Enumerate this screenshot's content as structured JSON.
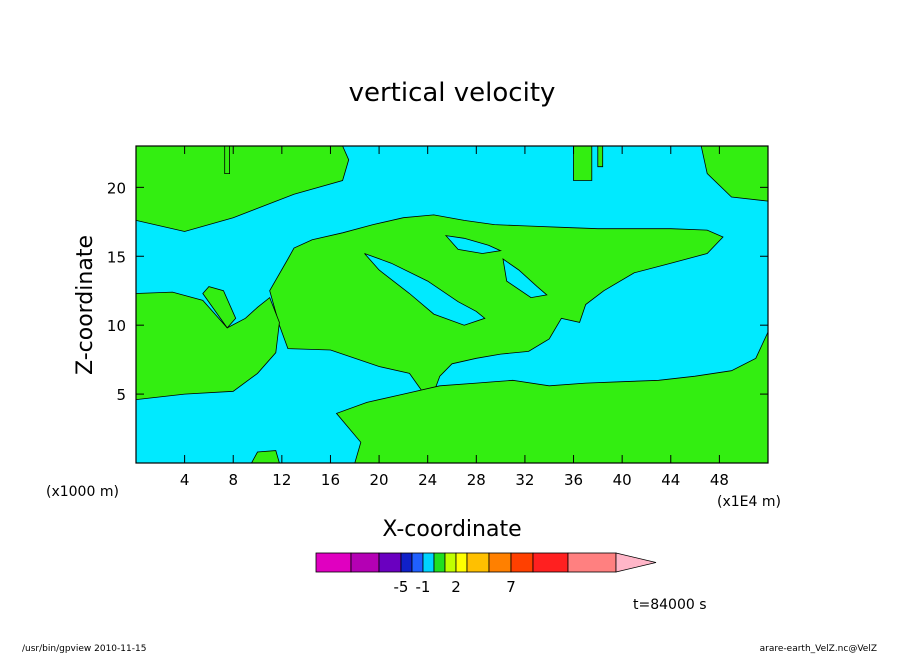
{
  "chart_data": {
    "type": "heatmap",
    "title": "vertical velocity",
    "xlabel": "X-coordinate",
    "ylabel": "Z-coordinate",
    "x_unit_left": "(x1000 m)",
    "x_unit_right": "(x1E4 m)",
    "xlim": [
      0,
      52
    ],
    "ylim": [
      0,
      23
    ],
    "x_ticks": [
      4,
      8,
      12,
      16,
      20,
      24,
      28,
      32,
      36,
      40,
      44,
      48
    ],
    "y_ticks": [
      5,
      10,
      15,
      20
    ],
    "colorbar": {
      "colors": [
        "#e000c0",
        "#b400b4",
        "#6a00c0",
        "#1020c8",
        "#2060ff",
        "#00d4ff",
        "#20e020",
        "#c0ff00",
        "#ffff00",
        "#ffc000",
        "#ff8000",
        "#ff4000",
        "#ff2020",
        "#ff8080"
      ],
      "over_color": "#ffb6c8",
      "labels": [
        {
          "text": "-5",
          "level": 3
        },
        {
          "text": "-1",
          "level": 5
        },
        {
          "text": "2",
          "level": 8
        },
        {
          "text": "7",
          "level": 11
        }
      ]
    },
    "regions": {
      "background_color": "#00eaff",
      "positive_color": "#33ee11",
      "positive_areas": [
        {
          "name": "upper-left",
          "points": [
            [
              0,
              23
            ],
            [
              17,
              23
            ],
            [
              17.5,
              22
            ],
            [
              17,
              20.5
            ],
            [
              13,
              19.5
            ],
            [
              8,
              17.8
            ],
            [
              4,
              16.8
            ],
            [
              0,
              17.6
            ]
          ]
        },
        {
          "name": "upper-right",
          "points": [
            [
              46.5,
              23
            ],
            [
              52,
              23
            ],
            [
              52,
              19
            ],
            [
              49,
              19.3
            ],
            [
              47,
              21
            ]
          ]
        },
        {
          "name": "thin-top-1",
          "points": [
            [
              7.3,
              23
            ],
            [
              7.7,
              23
            ],
            [
              7.7,
              21
            ],
            [
              7.3,
              21
            ]
          ]
        },
        {
          "name": "thin-top-2",
          "points": [
            [
              36,
              23
            ],
            [
              37.5,
              23
            ],
            [
              37.5,
              20.5
            ],
            [
              36,
              20.5
            ]
          ]
        },
        {
          "name": "thin-top-3",
          "points": [
            [
              38,
              23
            ],
            [
              38.4,
              23
            ],
            [
              38.4,
              21.5
            ],
            [
              38,
              21.5
            ]
          ]
        },
        {
          "name": "cloud",
          "points": [
            [
              12.5,
              14.8
            ],
            [
              13,
              15.6
            ],
            [
              14.5,
              16.2
            ],
            [
              17,
              16.7
            ],
            [
              19.5,
              17.3
            ],
            [
              22,
              17.8
            ],
            [
              24.5,
              18
            ],
            [
              27,
              17.6
            ],
            [
              29.5,
              17.3
            ],
            [
              32,
              17.2
            ],
            [
              35,
              17.1
            ],
            [
              38,
              17
            ],
            [
              41,
              17
            ],
            [
              44,
              17
            ],
            [
              47,
              16.9
            ],
            [
              48.3,
              16.4
            ],
            [
              47,
              15.2
            ],
            [
              44,
              14.5
            ],
            [
              41,
              13.8
            ],
            [
              38.5,
              12.5
            ],
            [
              37,
              11.5
            ],
            [
              36.5,
              10.2
            ],
            [
              35,
              10.5
            ],
            [
              34,
              9
            ],
            [
              32.3,
              8.1
            ],
            [
              30,
              7.9
            ],
            [
              28,
              7.6
            ],
            [
              26,
              7.2
            ],
            [
              25,
              6.3
            ],
            [
              24.2,
              4.4
            ],
            [
              22.5,
              6.5
            ],
            [
              20,
              7
            ],
            [
              16,
              8.2
            ],
            [
              12.5,
              8.3
            ],
            [
              11.8,
              10
            ],
            [
              11,
              12.5
            ]
          ]
        },
        {
          "name": "left-mid",
          "points": [
            [
              0,
              12.3
            ],
            [
              3,
              12.4
            ],
            [
              5.5,
              11.8
            ],
            [
              7.5,
              9.8
            ],
            [
              9,
              10.5
            ],
            [
              10,
              11.3
            ],
            [
              11,
              12
            ],
            [
              11.8,
              10.2
            ],
            [
              11.5,
              8
            ],
            [
              10,
              6.5
            ],
            [
              8,
              5.2
            ],
            [
              4,
              5
            ],
            [
              0,
              4.6
            ]
          ]
        },
        {
          "name": "left-spike",
          "points": [
            [
              5.5,
              12.3
            ],
            [
              6,
              12.8
            ],
            [
              7.2,
              12.5
            ],
            [
              8.2,
              10.5
            ],
            [
              7.5,
              9.8
            ]
          ]
        },
        {
          "name": "bottom",
          "points": [
            [
              18,
              0
            ],
            [
              52,
              0
            ],
            [
              52,
              9.5
            ],
            [
              51,
              7.6
            ],
            [
              49,
              6.7
            ],
            [
              46,
              6.3
            ],
            [
              43,
              6
            ],
            [
              40,
              5.9
            ],
            [
              37,
              5.8
            ],
            [
              34,
              5.6
            ],
            [
              31,
              6
            ],
            [
              28,
              5.8
            ],
            [
              25,
              5.6
            ],
            [
              22,
              5
            ],
            [
              19,
              4.4
            ],
            [
              16.5,
              3.6
            ],
            [
              18.5,
              1.5
            ]
          ]
        },
        {
          "name": "bottom-left-sliver",
          "points": [
            [
              9.5,
              0
            ],
            [
              11.8,
              0
            ],
            [
              11.5,
              0.9
            ],
            [
              10,
              0.8
            ]
          ]
        }
      ],
      "negative_holes": [
        {
          "name": "hole-1",
          "points": [
            [
              18.8,
              15.2
            ],
            [
              21,
              14.5
            ],
            [
              24,
              13.2
            ],
            [
              26.5,
              11.7
            ],
            [
              28,
              11
            ],
            [
              28.7,
              10.5
            ],
            [
              27,
              10
            ],
            [
              24.5,
              10.8
            ],
            [
              22.5,
              12.3
            ],
            [
              20,
              14
            ]
          ]
        },
        {
          "name": "hole-2",
          "points": [
            [
              25.5,
              16.5
            ],
            [
              27,
              16.3
            ],
            [
              29,
              15.8
            ],
            [
              30,
              15.4
            ],
            [
              28.5,
              15.2
            ],
            [
              26.5,
              15.5
            ]
          ]
        },
        {
          "name": "hole-3",
          "points": [
            [
              30.2,
              14.8
            ],
            [
              31.5,
              14
            ],
            [
              33,
              12.8
            ],
            [
              33.8,
              12.2
            ],
            [
              32.5,
              12
            ],
            [
              30.5,
              13.2
            ]
          ]
        }
      ]
    }
  },
  "footer": {
    "left": "/usr/bin/gpview   2010-11-15",
    "right": "arare-earth_VelZ.nc@VelZ"
  },
  "time_label": "t=84000 s"
}
